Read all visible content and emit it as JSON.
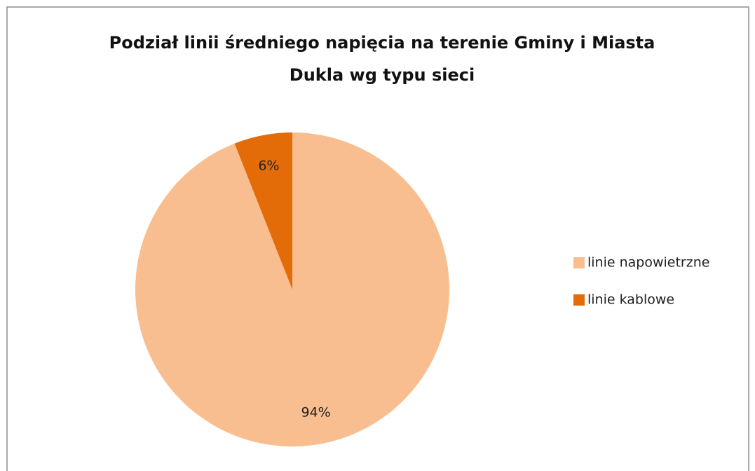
{
  "chart_data": {
    "type": "pie",
    "title": "Podział linii średniego napięcia na terenie Gminy i Miasta Dukla wg typu sieci",
    "categories": [
      "linie napowietrzne",
      "linie kablowe"
    ],
    "values": [
      94,
      6
    ],
    "value_labels": [
      "94%",
      "6%"
    ],
    "colors": [
      "#f9be8f",
      "#e36c09"
    ],
    "legend": "right"
  }
}
